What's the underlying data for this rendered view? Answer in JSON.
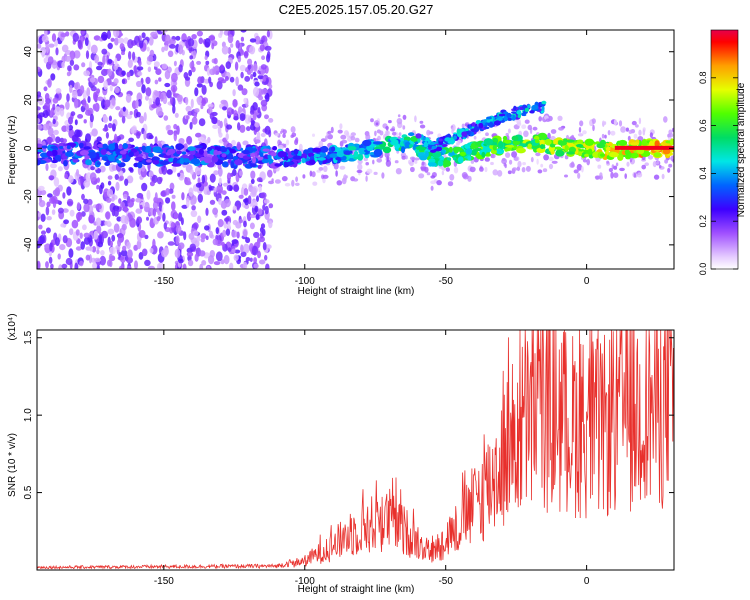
{
  "title": "C2E5.2025.157.05.20.G27",
  "colors": {
    "series_red": "#e8302c",
    "frame": "#000000"
  },
  "chart_data": [
    {
      "type": "heatmap",
      "xlabel": "Height of straight line (km)",
      "ylabel": "Frequency (Hz)",
      "xlim": [
        -195,
        31
      ],
      "ylim": [
        -50,
        49
      ],
      "xticks": [
        -150,
        -100,
        -50,
        0
      ],
      "yticks": [
        -40,
        -20,
        0,
        20,
        40
      ],
      "colorbar": {
        "label": "Normalized spectral amplitude",
        "range": [
          0,
          1
        ],
        "ticks": [
          0.0,
          0.2,
          0.4,
          0.6,
          0.8
        ],
        "colormap": "rainbow (white-violet-blue-cyan-green-yellow-red)"
      },
      "ridge_track": [
        {
          "x": -190,
          "y": -2
        },
        {
          "x": -160,
          "y": -3
        },
        {
          "x": -130,
          "y": -3
        },
        {
          "x": -110,
          "y": -4
        },
        {
          "x": -90,
          "y": -3
        },
        {
          "x": -75,
          "y": 0
        },
        {
          "x": -62,
          "y": 3
        },
        {
          "x": -55,
          "y": -5
        },
        {
          "x": -40,
          "y": -1
        },
        {
          "x": -28,
          "y": 2
        },
        {
          "x": -15,
          "y": 2
        },
        {
          "x": -5,
          "y": 0
        },
        {
          "x": 10,
          "y": -1
        },
        {
          "x": 20,
          "y": 0
        },
        {
          "x": 31,
          "y": 0
        }
      ],
      "grid": false
    },
    {
      "type": "line",
      "xlabel": "Height of straight line (km)",
      "ylabel": "SNR (10 * v/v)",
      "y_multiplier": "(x10⁴)",
      "xlim": [
        -195,
        31
      ],
      "ylim": [
        0,
        1.55
      ],
      "xticks": [
        -150,
        -100,
        -50,
        0
      ],
      "yticks": [
        0.5,
        1.0,
        1.5
      ],
      "series": [
        {
          "color": "#e8302c",
          "envelope": [
            {
              "x": -195,
              "y": 0.02
            },
            {
              "x": -110,
              "y": 0.03
            },
            {
              "x": -100,
              "y": 0.08
            },
            {
              "x": -90,
              "y": 0.22
            },
            {
              "x": -80,
              "y": 0.38
            },
            {
              "x": -70,
              "y": 0.45
            },
            {
              "x": -62,
              "y": 0.3
            },
            {
              "x": -55,
              "y": 0.15
            },
            {
              "x": -45,
              "y": 0.4
            },
            {
              "x": -35,
              "y": 0.75
            },
            {
              "x": -25,
              "y": 1.2
            },
            {
              "x": -15,
              "y": 1.45
            },
            {
              "x": -5,
              "y": 1.3
            },
            {
              "x": 5,
              "y": 1.25
            },
            {
              "x": 15,
              "y": 1.4
            },
            {
              "x": 31,
              "y": 1.52
            }
          ]
        }
      ],
      "grid": false
    }
  ]
}
